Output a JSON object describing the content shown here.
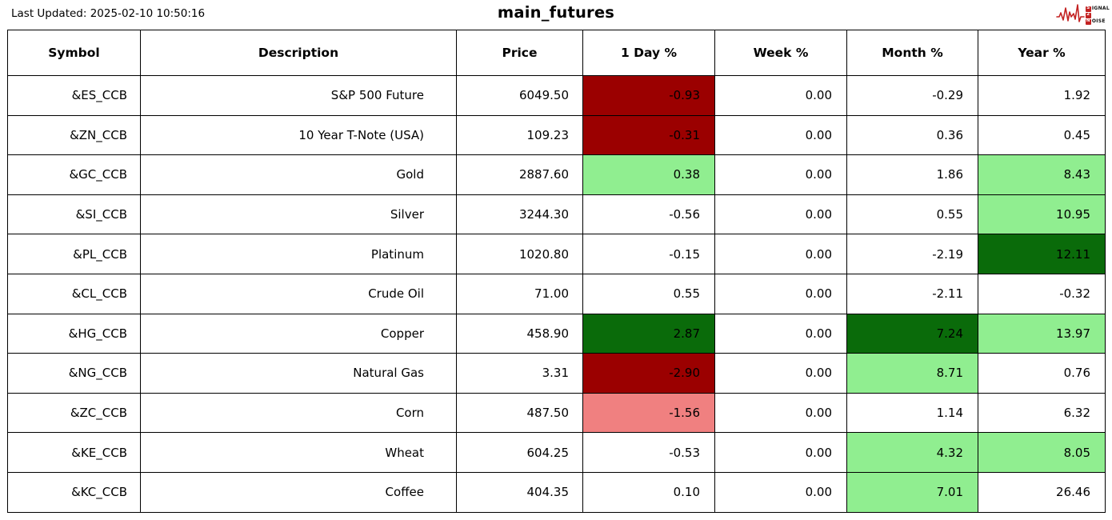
{
  "meta": {
    "last_updated": "Last Updated: 2025-02-10 10:50:16",
    "title": "main_futures"
  },
  "logo": {
    "word1_first": "S",
    "word1_rest": "IGNAL",
    "word2": "2",
    "word3_first": "N",
    "word3_rest": "OISE",
    "accent_color": "#c32222"
  },
  "colors": {
    "darkred": "#9b0000",
    "darkgreen": "#0a6b0a",
    "lightgreen": "#90ee90",
    "lightcoral": "#f08080",
    "white": "#ffffff",
    "border": "#000000"
  },
  "chart_data": {
    "type": "table",
    "title": "main_futures",
    "columns": [
      "Symbol",
      "Description",
      "Price",
      "1 Day %",
      "Week %",
      "Month %",
      "Year %"
    ],
    "rows": [
      {
        "cells": [
          "&ES_CCB",
          "S&P 500 Future",
          "6049.50",
          "-0.93",
          "0.00",
          "-0.29",
          "1.92"
        ],
        "bg": [
          null,
          null,
          null,
          "darkred",
          null,
          null,
          null
        ]
      },
      {
        "cells": [
          "&ZN_CCB",
          "10 Year T-Note (USA)",
          "109.23",
          "-0.31",
          "0.00",
          "0.36",
          "0.45"
        ],
        "bg": [
          null,
          null,
          null,
          "darkred",
          null,
          null,
          null
        ]
      },
      {
        "cells": [
          "&GC_CCB",
          "Gold",
          "2887.60",
          "0.38",
          "0.00",
          "1.86",
          "8.43"
        ],
        "bg": [
          null,
          null,
          null,
          "lightgreen",
          null,
          null,
          "lightgreen"
        ]
      },
      {
        "cells": [
          "&SI_CCB",
          "Silver",
          "3244.30",
          "-0.56",
          "0.00",
          "0.55",
          "10.95"
        ],
        "bg": [
          null,
          null,
          null,
          null,
          null,
          null,
          "lightgreen"
        ]
      },
      {
        "cells": [
          "&PL_CCB",
          "Platinum",
          "1020.80",
          "-0.15",
          "0.00",
          "-2.19",
          "12.11"
        ],
        "bg": [
          null,
          null,
          null,
          null,
          null,
          null,
          "darkgreen"
        ]
      },
      {
        "cells": [
          "&CL_CCB",
          "Crude Oil",
          "71.00",
          "0.55",
          "0.00",
          "-2.11",
          "-0.32"
        ],
        "bg": [
          null,
          null,
          null,
          null,
          null,
          null,
          null
        ]
      },
      {
        "cells": [
          "&HG_CCB",
          "Copper",
          "458.90",
          "2.87",
          "0.00",
          "7.24",
          "13.97"
        ],
        "bg": [
          null,
          null,
          null,
          "darkgreen",
          null,
          "darkgreen",
          "lightgreen"
        ]
      },
      {
        "cells": [
          "&NG_CCB",
          "Natural Gas",
          "3.31",
          "-2.90",
          "0.00",
          "8.71",
          "0.76"
        ],
        "bg": [
          null,
          null,
          null,
          "darkred",
          null,
          "lightgreen",
          null
        ]
      },
      {
        "cells": [
          "&ZC_CCB",
          "Corn",
          "487.50",
          "-1.56",
          "0.00",
          "1.14",
          "6.32"
        ],
        "bg": [
          null,
          null,
          null,
          "lightcoral",
          null,
          null,
          null
        ]
      },
      {
        "cells": [
          "&KE_CCB",
          "Wheat",
          "604.25",
          "-0.53",
          "0.00",
          "4.32",
          "8.05"
        ],
        "bg": [
          null,
          null,
          null,
          null,
          null,
          "lightgreen",
          "lightgreen"
        ]
      },
      {
        "cells": [
          "&KC_CCB",
          "Coffee",
          "404.35",
          "0.10",
          "0.00",
          "7.01",
          "26.46"
        ],
        "bg": [
          null,
          null,
          null,
          null,
          null,
          "lightgreen",
          null
        ]
      }
    ]
  }
}
